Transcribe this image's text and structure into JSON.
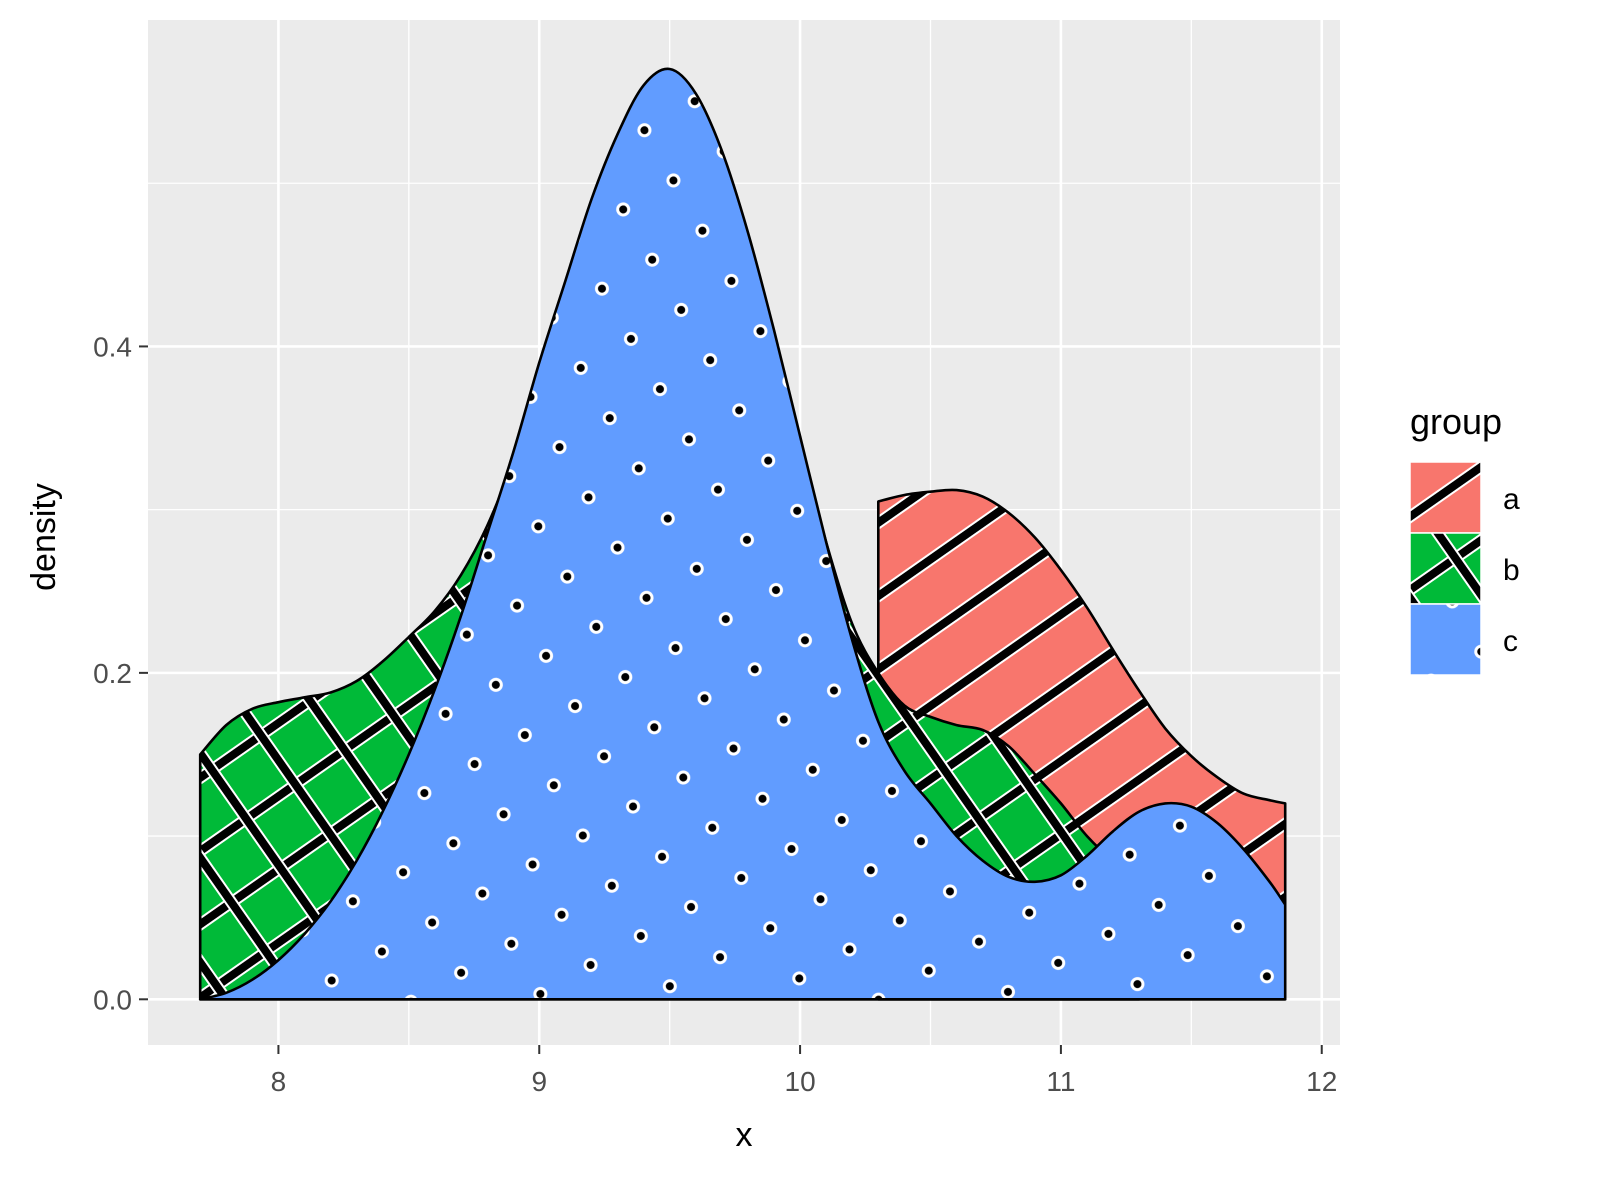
{
  "chart_data": {
    "type": "area",
    "xlabel": "x",
    "ylabel": "density",
    "xlim": [
      7.5,
      12.07
    ],
    "ylim": [
      -0.028,
      0.6
    ],
    "x_ticks": [
      8,
      9,
      10,
      11,
      12
    ],
    "x_tick_labels": [
      "8",
      "9",
      "10",
      "11",
      "12"
    ],
    "y_ticks": [
      0.0,
      0.2,
      0.4
    ],
    "y_tick_labels": [
      "0.0",
      "0.2",
      "0.4"
    ],
    "grid": true,
    "panel_background": "#ebebeb",
    "legend": {
      "title": "group",
      "position": "right",
      "entries": [
        "a",
        "b",
        "c"
      ]
    },
    "series": [
      {
        "name": "a",
        "color": "#f8766d",
        "pattern": "stripe",
        "x": [
          10.3,
          10.4,
          10.5,
          10.6,
          10.7,
          10.8,
          10.9,
          11.0,
          11.1,
          11.2,
          11.3,
          11.4,
          11.5,
          11.6,
          11.7,
          11.8,
          11.86
        ],
        "y": [
          0.305,
          0.309,
          0.311,
          0.312,
          0.308,
          0.298,
          0.283,
          0.263,
          0.24,
          0.214,
          0.189,
          0.166,
          0.149,
          0.136,
          0.126,
          0.122,
          0.12
        ]
      },
      {
        "name": "b",
        "color": "#00ba38",
        "pattern": "crosshatch",
        "x": [
          7.7,
          7.8,
          7.9,
          8.0,
          8.1,
          8.2,
          8.3,
          8.4,
          8.5,
          8.6,
          8.7,
          8.8,
          8.9,
          9.0,
          9.1,
          9.2,
          9.3,
          9.4,
          9.5,
          9.6,
          9.7,
          9.8,
          9.9,
          10.0,
          10.1,
          10.2,
          10.3,
          10.4,
          10.5,
          10.6,
          10.7,
          10.8,
          10.9,
          11.0,
          11.1,
          11.2,
          11.3
        ],
        "y": [
          0.15,
          0.168,
          0.178,
          0.182,
          0.185,
          0.188,
          0.195,
          0.207,
          0.222,
          0.238,
          0.26,
          0.29,
          0.33,
          0.38,
          0.42,
          0.46,
          0.5,
          0.535,
          0.55,
          0.54,
          0.5,
          0.45,
          0.4,
          0.34,
          0.28,
          0.23,
          0.2,
          0.18,
          0.173,
          0.168,
          0.165,
          0.155,
          0.138,
          0.12,
          0.1,
          0.085,
          0.075
        ]
      },
      {
        "name": "c",
        "color": "#619cff",
        "pattern": "circle",
        "x": [
          7.7,
          7.8,
          7.9,
          8.0,
          8.1,
          8.2,
          8.3,
          8.4,
          8.5,
          8.6,
          8.7,
          8.8,
          8.9,
          9.0,
          9.1,
          9.2,
          9.3,
          9.4,
          9.5,
          9.6,
          9.7,
          9.8,
          9.9,
          10.0,
          10.1,
          10.2,
          10.3,
          10.4,
          10.5,
          10.6,
          10.7,
          10.8,
          10.9,
          11.0,
          11.1,
          11.2,
          11.3,
          11.4,
          11.5,
          11.6,
          11.7,
          11.8,
          11.86
        ],
        "y": [
          0.0,
          0.004,
          0.012,
          0.024,
          0.04,
          0.06,
          0.085,
          0.115,
          0.15,
          0.19,
          0.235,
          0.285,
          0.335,
          0.39,
          0.44,
          0.49,
          0.53,
          0.56,
          0.57,
          0.555,
          0.52,
          0.47,
          0.41,
          0.345,
          0.28,
          0.22,
          0.17,
          0.14,
          0.12,
          0.1,
          0.085,
          0.075,
          0.072,
          0.076,
          0.088,
          0.103,
          0.115,
          0.12,
          0.118,
          0.108,
          0.092,
          0.072,
          0.058
        ]
      }
    ]
  }
}
